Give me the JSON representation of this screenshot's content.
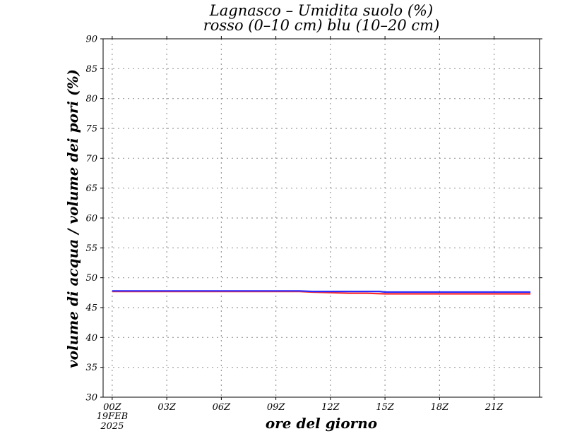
{
  "chart_data": {
    "type": "line",
    "title": "Lagnasco – Umidita suolo (%)",
    "subtitle": "rosso (0–10 cm) blu (10–20 cm)",
    "xlabel": "ore del giorno",
    "ylabel": "volume di acqua / volume dei pori (%)",
    "x_ticks": [
      "00Z",
      "03Z",
      "06Z",
      "09Z",
      "12Z",
      "15Z",
      "18Z",
      "21Z"
    ],
    "x_tick_hours": [
      0,
      3,
      6,
      9,
      12,
      15,
      18,
      21
    ],
    "date_label_line1": "19FEB",
    "date_label_line2": "2025",
    "xlim": [
      -0.5,
      23.5
    ],
    "ylim": [
      30,
      90
    ],
    "y_ticks": [
      30,
      35,
      40,
      45,
      50,
      55,
      60,
      65,
      70,
      75,
      80,
      85,
      90
    ],
    "grid": true,
    "series": [
      {
        "color": "#ff2a2a",
        "x": [
          0,
          3,
          6,
          9,
          10.3,
          11,
          12,
          13,
          14,
          15,
          16,
          18,
          21,
          23
        ],
        "y": [
          47.7,
          47.7,
          47.7,
          47.7,
          47.7,
          47.6,
          47.5,
          47.4,
          47.4,
          47.3,
          47.3,
          47.3,
          47.3,
          47.3
        ]
      },
      {
        "color": "#2a2aff",
        "x": [
          0,
          3,
          6,
          9,
          10.3,
          11,
          12,
          13,
          14,
          14.7,
          15,
          18,
          21,
          23
        ],
        "y": [
          47.8,
          47.8,
          47.8,
          47.8,
          47.8,
          47.7,
          47.7,
          47.7,
          47.7,
          47.7,
          47.6,
          47.6,
          47.6,
          47.6
        ]
      }
    ]
  }
}
